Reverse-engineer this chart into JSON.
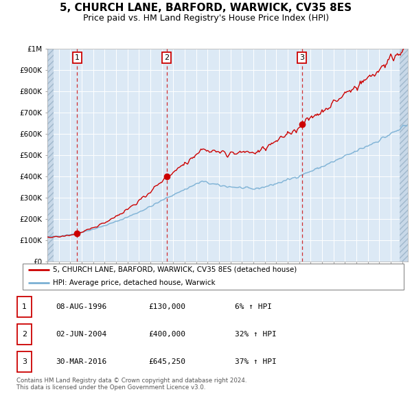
{
  "title": "5, CHURCH LANE, BARFORD, WARWICK, CV35 8ES",
  "subtitle": "Price paid vs. HM Land Registry's House Price Index (HPI)",
  "title_fontsize": 11,
  "subtitle_fontsize": 9,
  "background_color": "#dce9f5",
  "red_line_color": "#cc0000",
  "blue_line_color": "#7ab0d4",
  "dashed_line_color": "#cc0000",
  "legend_label_red": "5, CHURCH LANE, BARFORD, WARWICK, CV35 8ES (detached house)",
  "legend_label_blue": "HPI: Average price, detached house, Warwick",
  "table_rows": [
    [
      "1",
      "08-AUG-1996",
      "£130,000",
      "6% ↑ HPI"
    ],
    [
      "2",
      "02-JUN-2004",
      "£400,000",
      "32% ↑ HPI"
    ],
    [
      "3",
      "30-MAR-2016",
      "£645,250",
      "37% ↑ HPI"
    ]
  ],
  "footer": "Contains HM Land Registry data © Crown copyright and database right 2024.\nThis data is licensed under the Open Government Licence v3.0.",
  "ylim": [
    0,
    1000000
  ],
  "yticks": [
    0,
    100000,
    200000,
    300000,
    400000,
    500000,
    600000,
    700000,
    800000,
    900000,
    1000000
  ],
  "ytick_labels": [
    "£0",
    "£100K",
    "£200K",
    "£300K",
    "£400K",
    "£500K",
    "£600K",
    "£700K",
    "£800K",
    "£900K",
    "£1M"
  ],
  "xmin": 1994.0,
  "xmax": 2025.5,
  "sale_years": [
    1996.6,
    2004.42,
    2016.24
  ],
  "sale_prices": [
    130000,
    400000,
    645250
  ],
  "sale_labels": [
    "1",
    "2",
    "3"
  ]
}
